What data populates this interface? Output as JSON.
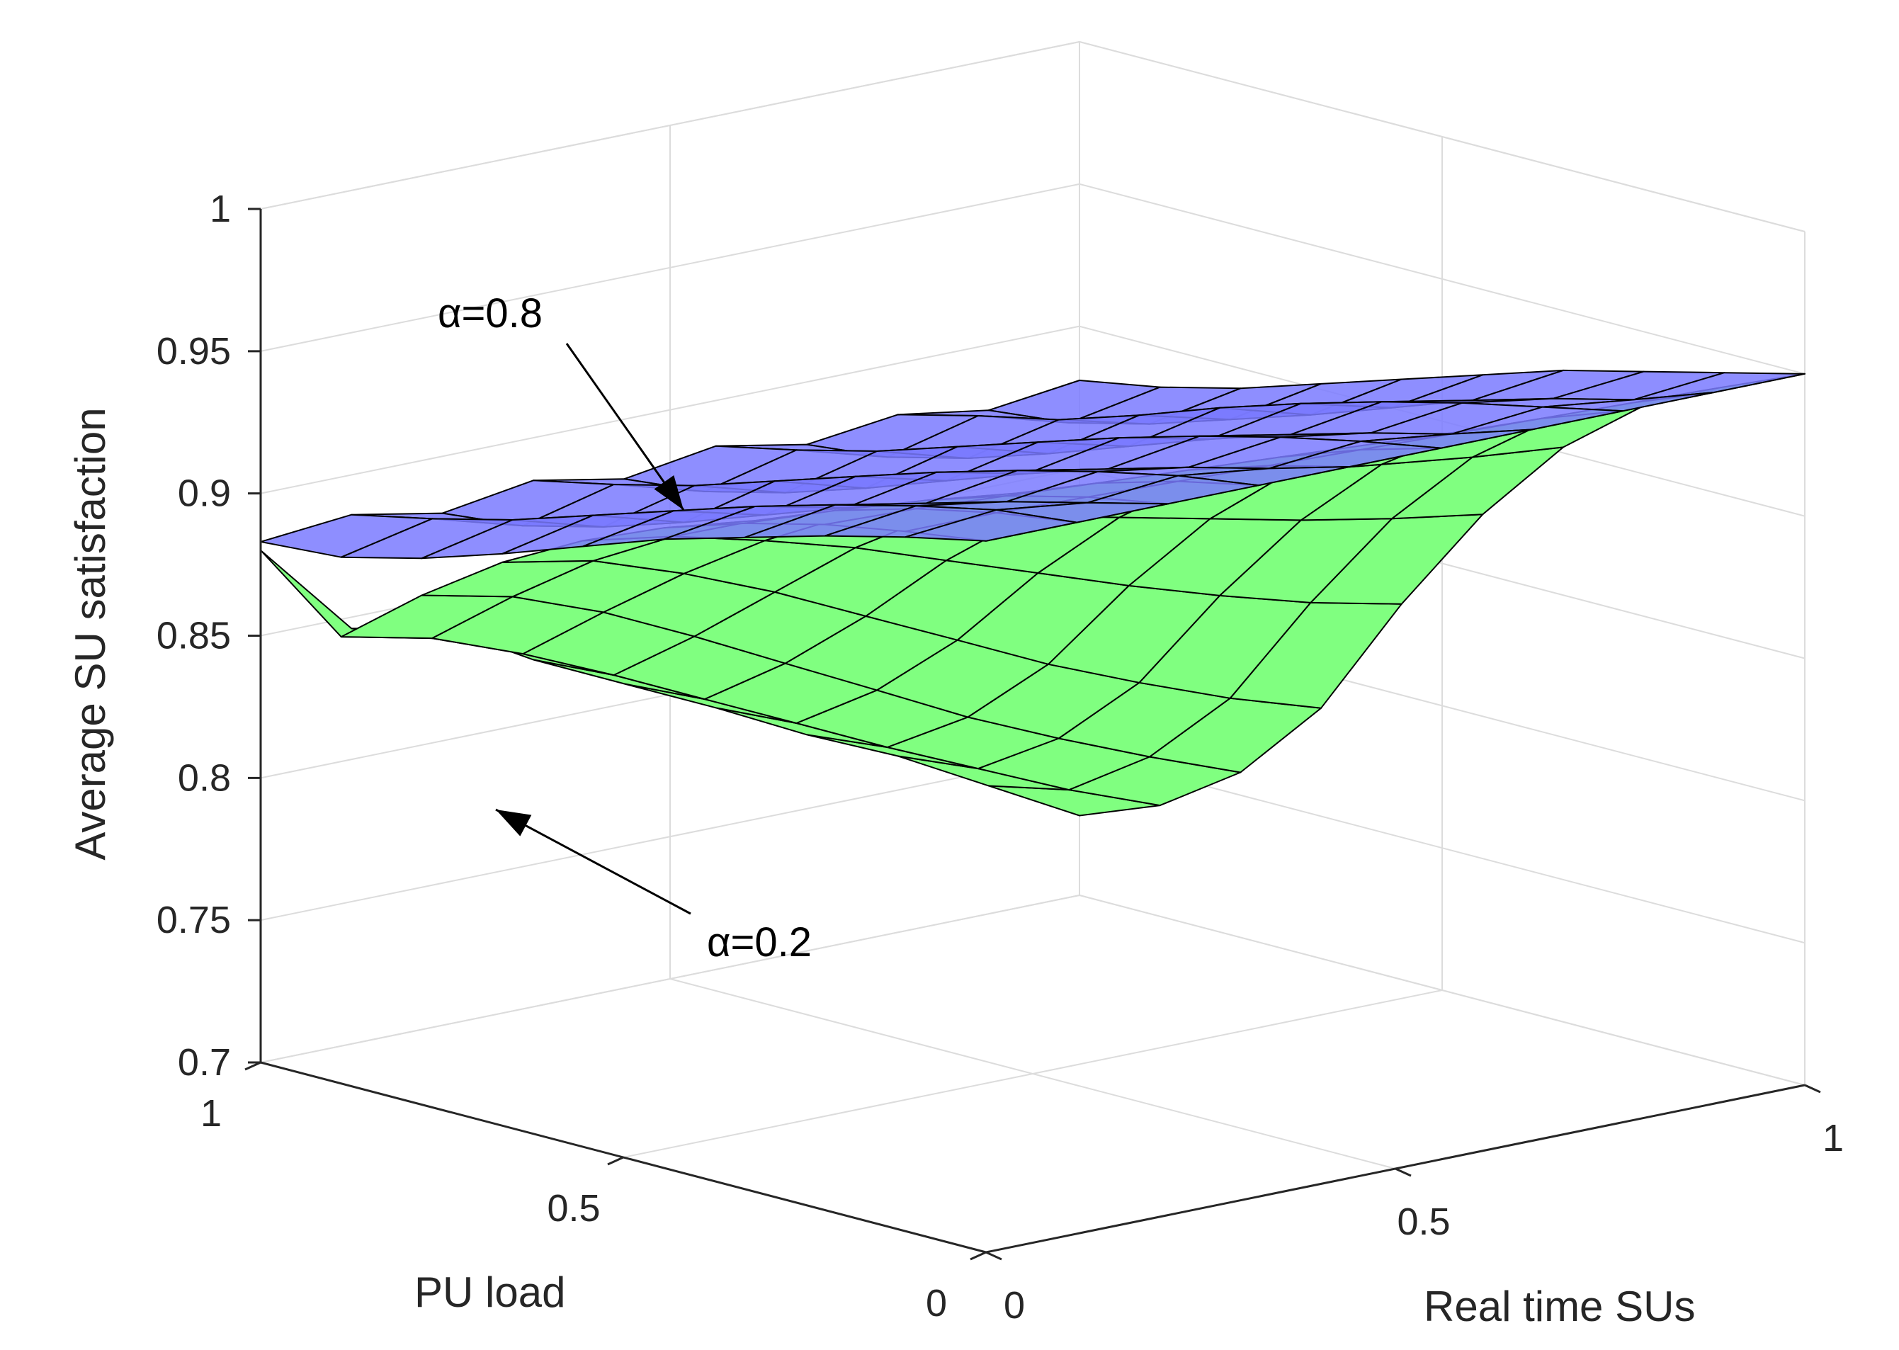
{
  "chart_data": {
    "type": "surface",
    "title": "",
    "xlabel": "Real time SUs",
    "ylabel": "PU load",
    "zlabel": "Average SU satisfaction",
    "xlim": [
      0,
      1
    ],
    "ylim": [
      0,
      1
    ],
    "zlim": [
      0.7,
      1
    ],
    "x_ticks": [
      "0",
      "0.5",
      "1"
    ],
    "y_ticks": [
      "0",
      "0.5",
      "1"
    ],
    "z_ticks": [
      "0.7",
      "0.75",
      "0.8",
      "0.85",
      "0.9",
      "0.95",
      "1"
    ],
    "grid": true,
    "x": [
      0,
      0.111,
      0.222,
      0.333,
      0.444,
      0.556,
      0.667,
      0.778,
      0.889,
      1.0
    ],
    "y": [
      0,
      0.111,
      0.222,
      0.333,
      0.444,
      0.556,
      0.667,
      0.778,
      0.889,
      1.0
    ],
    "series": [
      {
        "color": "#80ff80",
        "z": [
          [
            0.95,
            0.95,
            0.95,
            0.95,
            0.95,
            0.95,
            0.95,
            0.95,
            0.95,
            0.95
          ],
          [
            0.946,
            0.946,
            0.945,
            0.944,
            0.943,
            0.942,
            0.941,
            0.94,
            0.939,
            0.938
          ],
          [
            0.941,
            0.94,
            0.938,
            0.936,
            0.934,
            0.932,
            0.93,
            0.928,
            0.926,
            0.924
          ],
          [
            0.934,
            0.932,
            0.929,
            0.925,
            0.921,
            0.917,
            0.913,
            0.909,
            0.905,
            0.902
          ],
          [
            0.925,
            0.921,
            0.916,
            0.91,
            0.903,
            0.896,
            0.889,
            0.882,
            0.876,
            0.871
          ],
          [
            0.913,
            0.908,
            0.9,
            0.891,
            0.88,
            0.869,
            0.858,
            0.848,
            0.839,
            0.832
          ],
          [
            0.898,
            0.892,
            0.881,
            0.868,
            0.853,
            0.838,
            0.823,
            0.81,
            0.798,
            0.788
          ],
          [
            0.879,
            0.872,
            0.86,
            0.845,
            0.829,
            0.813,
            0.797,
            0.783,
            0.77,
            0.758
          ],
          [
            0.857,
            0.85,
            0.838,
            0.824,
            0.809,
            0.794,
            0.779,
            0.765,
            0.751,
            0.739
          ],
          [
            0.88,
            0.846,
            0.84,
            0.822,
            0.807,
            0.792,
            0.776,
            0.762,
            0.745,
            0.728
          ]
        ]
      },
      {
        "color": "#7a7aff",
        "z": [
          [
            0.95,
            0.95,
            0.95,
            0.95,
            0.95,
            0.95,
            0.95,
            0.95,
            0.95,
            0.95
          ],
          [
            0.944,
            0.947,
            0.943,
            0.946,
            0.942,
            0.945,
            0.941,
            0.944,
            0.94,
            0.943
          ],
          [
            0.937,
            0.941,
            0.936,
            0.94,
            0.935,
            0.939,
            0.934,
            0.938,
            0.933,
            0.936
          ],
          [
            0.929,
            0.934,
            0.928,
            0.933,
            0.927,
            0.932,
            0.926,
            0.931,
            0.925,
            0.929
          ],
          [
            0.921,
            0.926,
            0.919,
            0.925,
            0.918,
            0.924,
            0.917,
            0.923,
            0.915,
            0.92
          ],
          [
            0.911,
            0.917,
            0.909,
            0.916,
            0.908,
            0.915,
            0.907,
            0.914,
            0.905,
            0.911
          ],
          [
            0.901,
            0.908,
            0.899,
            0.907,
            0.898,
            0.906,
            0.897,
            0.904,
            0.896,
            0.902
          ],
          [
            0.892,
            0.899,
            0.89,
            0.898,
            0.889,
            0.897,
            0.888,
            0.895,
            0.887,
            0.893
          ],
          [
            0.885,
            0.892,
            0.883,
            0.891,
            0.882,
            0.89,
            0.881,
            0.889,
            0.88,
            0.886
          ],
          [
            0.883,
            0.886,
            0.88,
            0.885,
            0.879,
            0.884,
            0.878,
            0.882,
            0.877,
            0.881
          ]
        ]
      }
    ],
    "annotations": [
      {
        "text": "α=0.8"
      },
      {
        "text": "α=0.2"
      }
    ]
  }
}
